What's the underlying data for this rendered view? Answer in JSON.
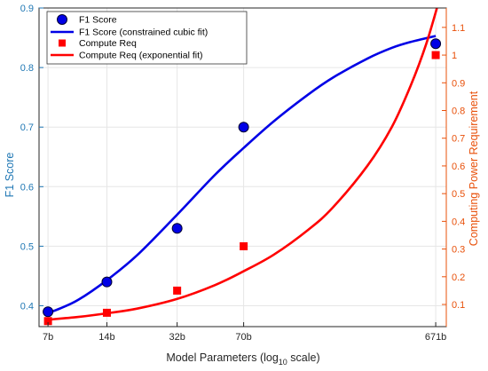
{
  "chart_data": {
    "type": "scatter",
    "xlabel": "Model Parameters (log",
    "xlabel_sub": "10",
    "xlabel_suffix": " scale)",
    "ylabel_left": "F1 Score",
    "ylabel_right": "Computing Power Requirement",
    "x_scale": "log10",
    "x_tick_labels": [
      "7b",
      "14b",
      "32b",
      "70b",
      "671b"
    ],
    "x_tick_values": [
      7,
      14,
      32,
      70,
      671
    ],
    "xlim": [
      6.3,
      760
    ],
    "ylim_left": [
      0.365,
      0.9
    ],
    "ylim_right": [
      0.02,
      1.17
    ],
    "y_ticks_left": [
      0.4,
      0.5,
      0.6,
      0.7,
      0.8,
      0.9
    ],
    "y_ticks_right": [
      0.1,
      0.2,
      0.3,
      0.4,
      0.5,
      0.6,
      0.7,
      0.8,
      0.9,
      1,
      1.1
    ],
    "grid": true,
    "legend_position": "top-left",
    "colors": {
      "f1": "#0000e6",
      "f1_axis": "#1f77b4",
      "compute": "#ff0000",
      "compute_axis": "#e8500a",
      "marker_edge": "#000033",
      "grid": "#e6e6e6"
    },
    "series": [
      {
        "name": "F1 Score",
        "kind": "points",
        "axis": "left",
        "x": [
          7,
          14,
          32,
          70,
          671
        ],
        "y": [
          0.39,
          0.44,
          0.53,
          0.7,
          0.84
        ]
      },
      {
        "name": "F1 Score (constrained cubic fit)",
        "kind": "line",
        "axis": "left",
        "x": [
          7,
          8,
          10,
          14,
          20,
          32,
          50,
          70,
          100,
          150,
          200,
          300,
          400,
          500,
          671
        ],
        "y": [
          0.388,
          0.395,
          0.41,
          0.443,
          0.485,
          0.553,
          0.62,
          0.665,
          0.71,
          0.755,
          0.783,
          0.815,
          0.833,
          0.843,
          0.853
        ]
      },
      {
        "name": "Compute Req",
        "kind": "points",
        "axis": "right",
        "x": [
          7,
          14,
          32,
          70,
          671
        ],
        "y": [
          0.04,
          0.07,
          0.15,
          0.31,
          1.0
        ]
      },
      {
        "name": "Compute Req (exponential fit)",
        "kind": "line",
        "axis": "right",
        "x": [
          7,
          10,
          14,
          20,
          32,
          50,
          70,
          100,
          150,
          200,
          300,
          400,
          500,
          600,
          700
        ],
        "y": [
          0.045,
          0.055,
          0.068,
          0.085,
          0.12,
          0.17,
          0.22,
          0.28,
          0.37,
          0.45,
          0.6,
          0.74,
          0.89,
          1.04,
          1.2
        ]
      }
    ]
  }
}
